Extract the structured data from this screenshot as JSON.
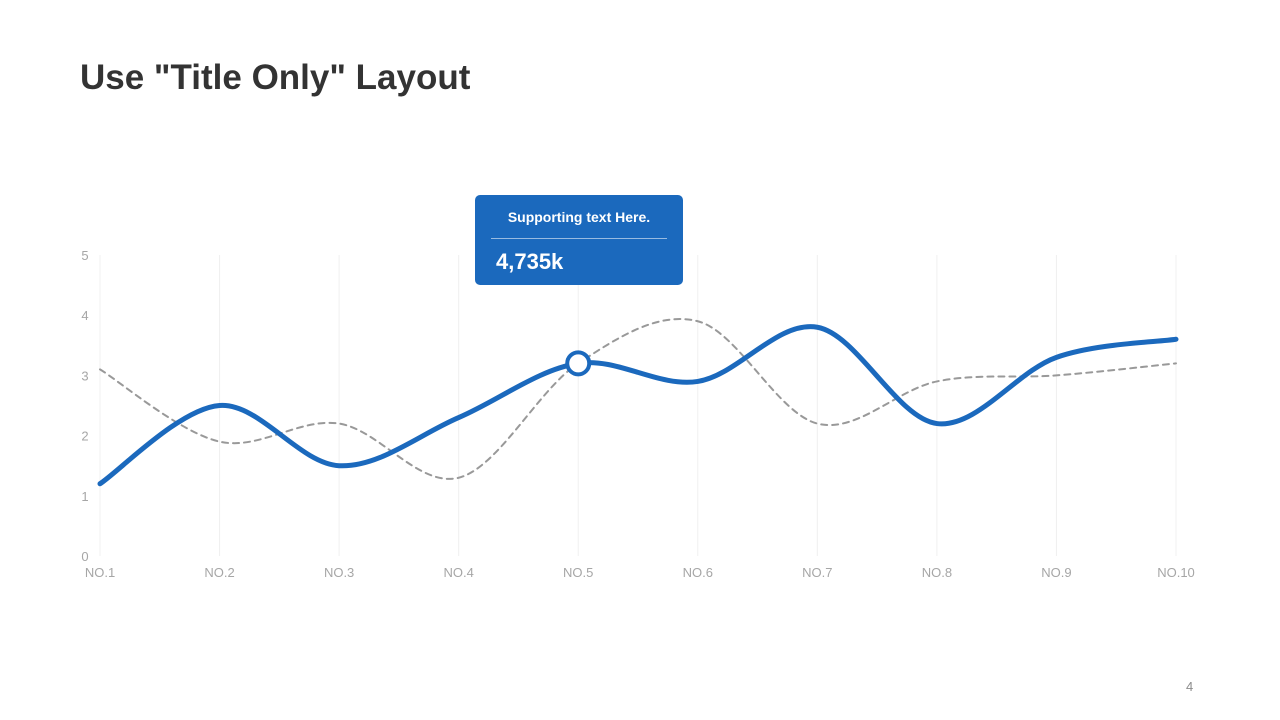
{
  "slide": {
    "title": "Use \"Title Only\" Layout",
    "page_number": "4"
  },
  "callout": {
    "text": "Supporting text Here.",
    "value": "4,735k",
    "target_category": "NO.5"
  },
  "colors": {
    "primary_series": "#1b69bd",
    "secondary_series": "#999999",
    "grid": "#f0f0f0",
    "tick_text": "#a6a6a6",
    "title": "#333333",
    "callout_bg": "#1b69bd"
  },
  "chart_data": {
    "type": "line",
    "categories": [
      "NO.1",
      "NO.2",
      "NO.3",
      "NO.4",
      "NO.5",
      "NO.6",
      "NO.7",
      "NO.8",
      "NO.9",
      "NO.10"
    ],
    "series": [
      {
        "style": "solid",
        "color": "#1b69bd",
        "values": [
          1.2,
          2.5,
          1.5,
          2.3,
          3.2,
          2.9,
          3.8,
          2.2,
          3.3,
          3.6
        ],
        "highlight_index": 4
      },
      {
        "style": "dashed",
        "color": "#999999",
        "values": [
          3.1,
          1.9,
          2.2,
          1.3,
          3.2,
          3.9,
          2.2,
          2.9,
          3.0,
          3.2
        ]
      }
    ],
    "y_ticks": [
      "0",
      "1",
      "2",
      "3",
      "4",
      "5"
    ],
    "ylim": [
      0,
      5
    ],
    "smooth": true,
    "grid": "vertical",
    "legend": "none",
    "title": "",
    "xlabel": "",
    "ylabel": ""
  }
}
